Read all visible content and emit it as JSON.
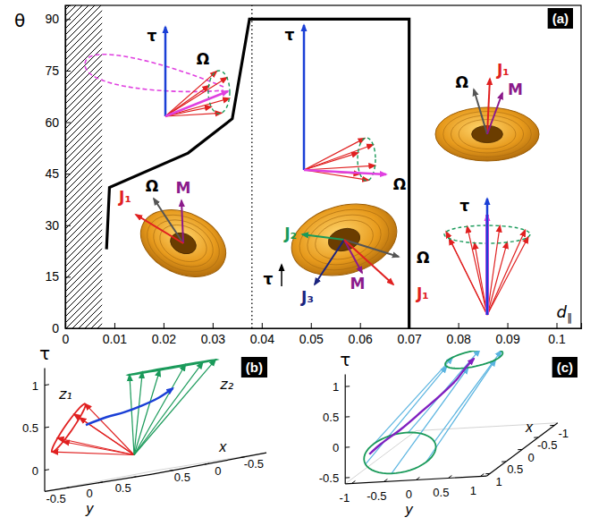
{
  "chart_data": [
    {
      "type": "line",
      "panel_label": "(a)",
      "xlabel": "d∥",
      "ylabel": "θ",
      "xlim": [
        0,
        0.105
      ],
      "ylim": [
        0,
        94
      ],
      "xticks": [
        0,
        0.01,
        0.02,
        0.03,
        0.04,
        0.05,
        0.06,
        0.07,
        0.08,
        0.09,
        0.1
      ],
      "yticks": [
        0,
        15,
        30,
        45,
        60,
        75,
        90
      ],
      "series": [
        {
          "type": "line",
          "color": "#000000",
          "line_style": "solid",
          "x": [
            0.0084,
            0.009,
            0.025,
            0.034,
            0.0375,
            0.07,
            0.07
          ],
          "values": [
            23,
            41,
            51,
            61,
            90,
            90,
            0
          ]
        },
        {
          "type": "line",
          "color": "#000000",
          "line_style": "dotted",
          "x": [
            0.038,
            0.038
          ],
          "values": [
            0,
            94
          ]
        },
        {
          "type": "area",
          "color": "#000000",
          "line_style": "hatched",
          "x": [
            0,
            0.0075
          ],
          "values": [
            94,
            94
          ]
        }
      ],
      "annotations": [
        "τ",
        "Ω",
        "τ",
        "Ω",
        "J₁",
        "Ω",
        "M",
        "τ",
        "Ω",
        "M",
        "J₁",
        "J₂",
        "τ",
        "J₃",
        "M",
        "Ω",
        "J₁"
      ]
    },
    {
      "type": "line3d",
      "panel_label": "(b)",
      "xlabel": "x",
      "ylabel": "y",
      "zlabel": "τ",
      "xlim": [
        -0.8,
        0.8
      ],
      "ylim": [
        -0.8,
        0.8
      ],
      "zlim": [
        -0.25,
        1.2
      ],
      "xticks": [
        -0.5,
        0,
        0.5
      ],
      "yticks": [
        -0.5,
        0,
        0.5
      ],
      "zticks": [
        0,
        0.5,
        1
      ],
      "series": [
        {
          "color": "#1a3fd6",
          "x": [
            0.6,
            0.45,
            0.3,
            0.15,
            0.0,
            -0.15
          ],
          "y": [
            -0.4,
            -0.25,
            -0.15,
            -0.05,
            0.05,
            0.1
          ],
          "values": [
            0.45,
            0.5,
            0.52,
            0.56,
            0.62,
            0.7
          ]
        }
      ],
      "annotations": [
        "z₁",
        "z₂"
      ]
    },
    {
      "type": "line3d",
      "panel_label": "(c)",
      "xlabel": "x",
      "ylabel": "y",
      "zlabel": "τ",
      "xlim": [
        -1.1,
        1.1
      ],
      "ylim": [
        -1.1,
        1.1
      ],
      "zlim": [
        -0.6,
        1.2
      ],
      "xticks": [
        -1,
        -0.5,
        0,
        0.5,
        1
      ],
      "yticks": [
        -1,
        -0.5,
        0,
        0.5,
        1
      ],
      "zticks": [
        -0.5,
        0,
        0.5,
        1
      ],
      "series": [
        {
          "color": "#8020c0",
          "x": [
            0.65,
            0.5,
            0.35,
            0.2,
            0.12,
            0.05,
            -0.02,
            -0.1
          ],
          "y": [
            -0.95,
            -0.85,
            -0.6,
            -0.35,
            -0.1,
            0.1,
            0.22,
            0.3
          ],
          "values": [
            -0.3,
            -0.2,
            -0.02,
            0.2,
            0.42,
            0.62,
            0.8,
            0.9
          ]
        }
      ]
    }
  ]
}
